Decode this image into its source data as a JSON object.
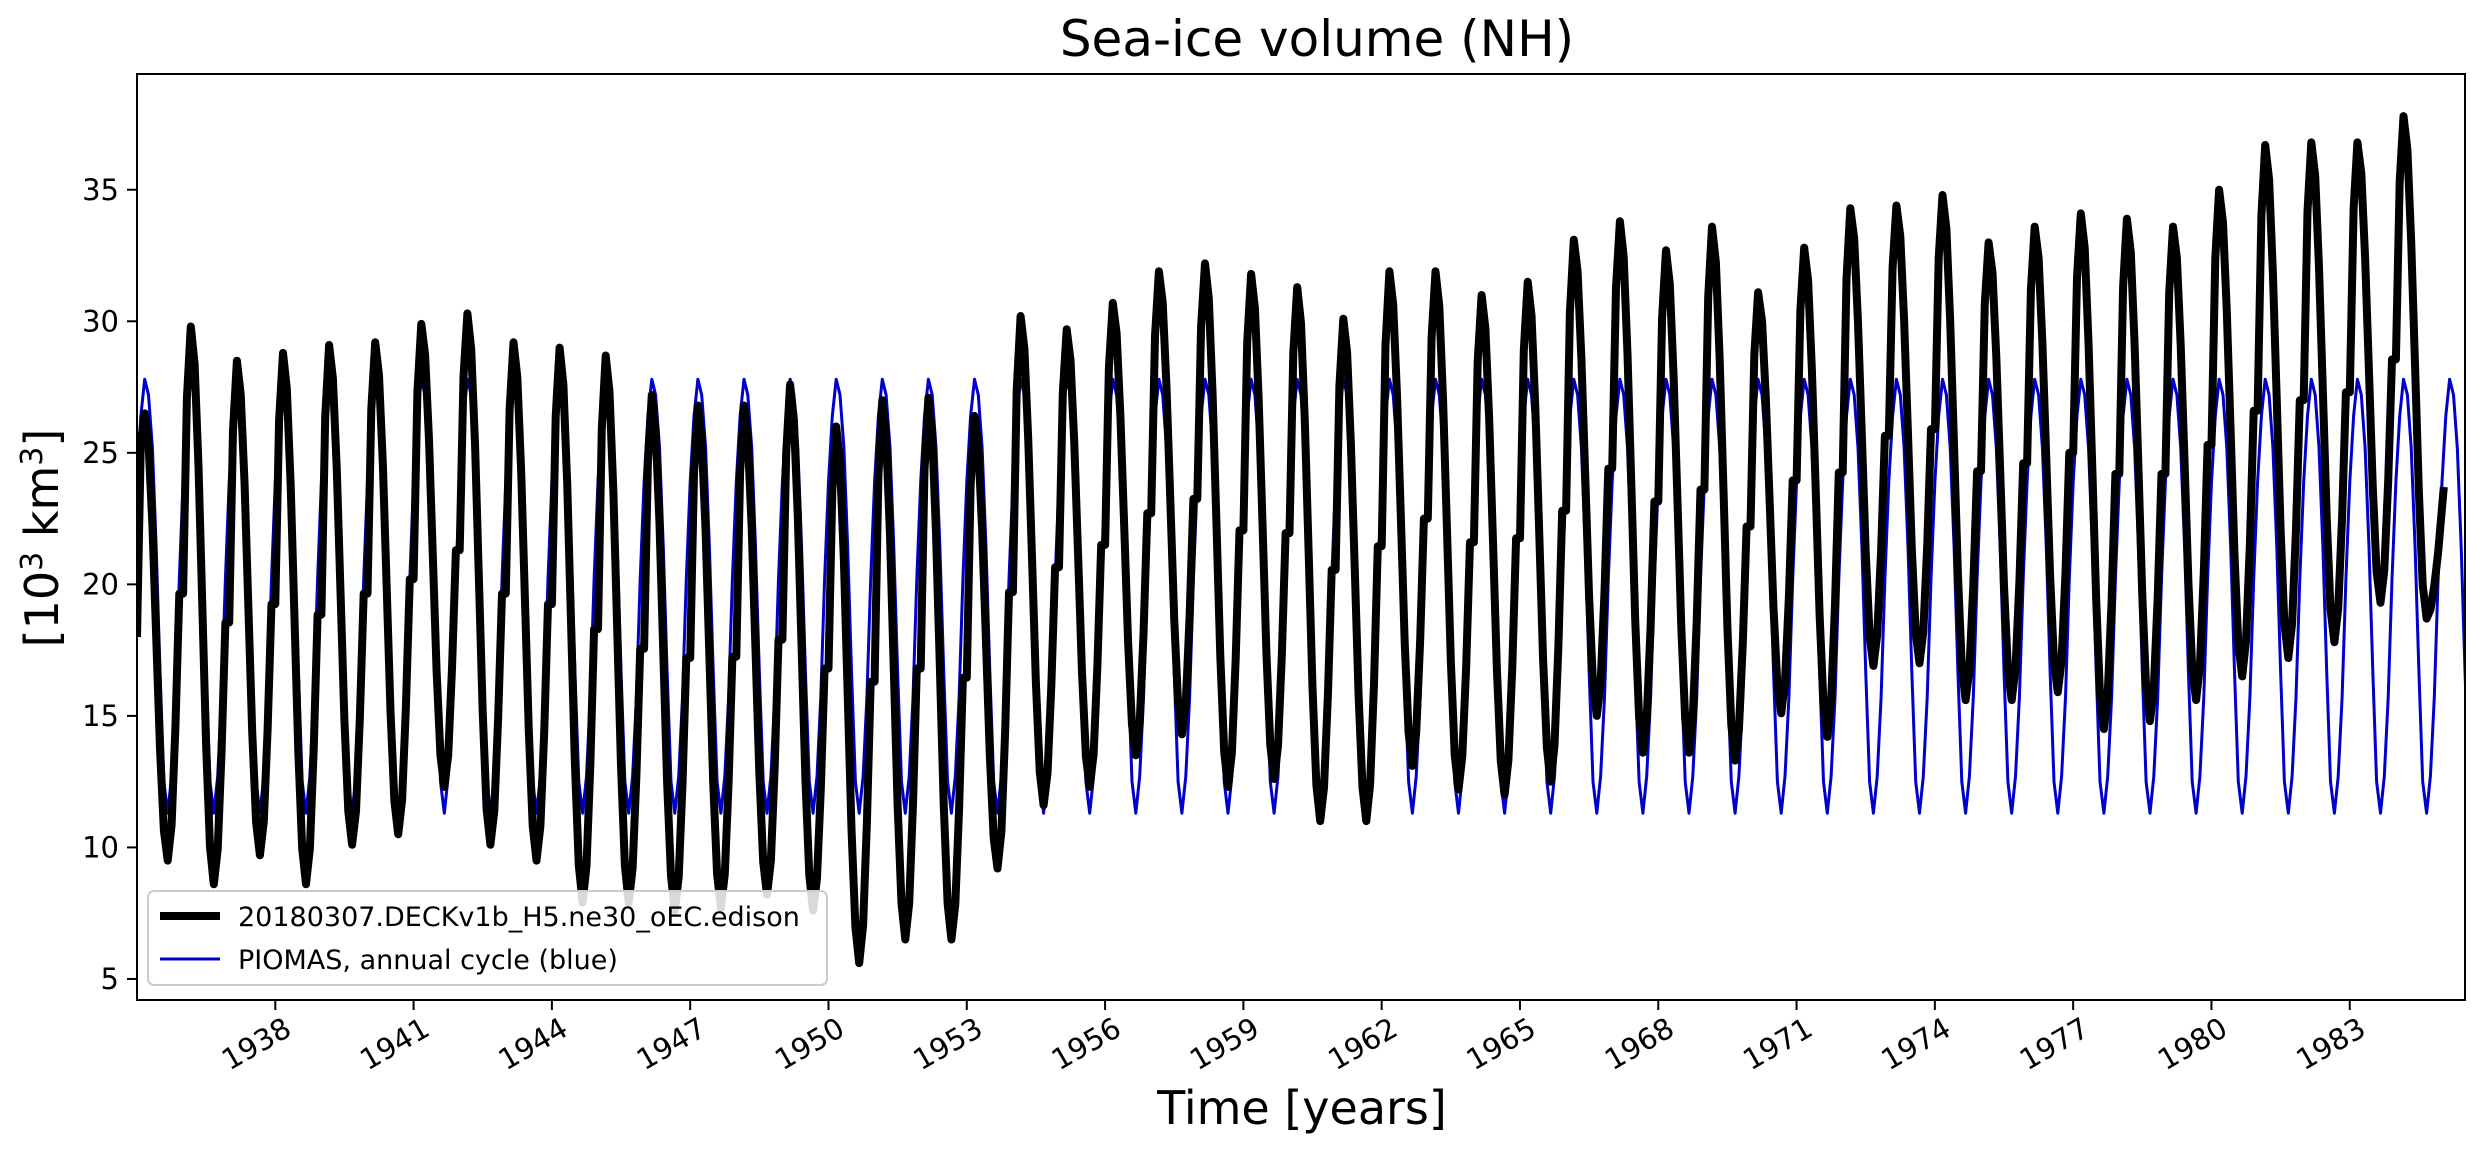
{
  "chart_data": {
    "type": "line",
    "title": "Sea-ice volume (NH)",
    "xlabel": "Time [years]",
    "ylabel_prefix": "[10",
    "ylabel_exp1": "3",
    "ylabel_mid": " km",
    "ylabel_exp2": "3",
    "ylabel_suffix": "]",
    "xlim": [
      1935.0,
      1985.5
    ],
    "ylim": [
      4.2,
      39.4
    ],
    "xticks": [
      1938,
      1941,
      1944,
      1947,
      1950,
      1953,
      1956,
      1959,
      1962,
      1965,
      1968,
      1971,
      1974,
      1977,
      1980,
      1983
    ],
    "yticks": [
      5,
      10,
      15,
      20,
      25,
      30,
      35
    ],
    "series": [
      {
        "name": "20180307.DECKv1b_H5.ne30_oEC.edison",
        "color": "#000000",
        "start_year": 1935,
        "start_value": 18.0,
        "annual_max": [
          26.5,
          29.8,
          28.5,
          28.8,
          29.1,
          29.2,
          29.9,
          30.3,
          29.2,
          29.0,
          28.7,
          27.2,
          26.8,
          26.8,
          27.6,
          26.0,
          27.0,
          27.1,
          26.4,
          30.2,
          29.7,
          30.7,
          31.9,
          32.2,
          31.8,
          31.3,
          30.1,
          31.9,
          31.9,
          31.0,
          31.5,
          33.1,
          33.8,
          32.7,
          33.6,
          31.1,
          32.8,
          34.3,
          34.4,
          34.8,
          33.0,
          33.6,
          34.1,
          33.9,
          33.6,
          35.0,
          36.7,
          36.8,
          36.8,
          37.8
        ],
        "annual_min": [
          9.5,
          8.6,
          9.7,
          8.6,
          10.1,
          10.5,
          12.3,
          10.1,
          9.5,
          7.9,
          7.9,
          7.6,
          7.7,
          8.2,
          7.6,
          5.6,
          6.5,
          6.5,
          9.2,
          11.6,
          12.3,
          13.5,
          14.3,
          12.3,
          12.6,
          11.0,
          11.0,
          13.1,
          12.2,
          12.0,
          12.5,
          15.0,
          13.6,
          13.6,
          13.3,
          15.1,
          14.2,
          16.9,
          17.0,
          15.6,
          15.6,
          15.9,
          14.5,
          14.8,
          15.6,
          16.5,
          17.2,
          17.8,
          19.3,
          18.7
        ],
        "end_value": 23.7
      },
      {
        "name": "PIOMAS, annual cycle (blue)",
        "color": "#0000cc",
        "monthly_cycle": [
          23.9,
          26.4,
          27.8,
          27.2,
          25.2,
          21.4,
          16.7,
          12.5,
          11.3,
          12.7,
          15.7,
          20.2
        ]
      }
    ],
    "legend_location": "lower-left"
  }
}
